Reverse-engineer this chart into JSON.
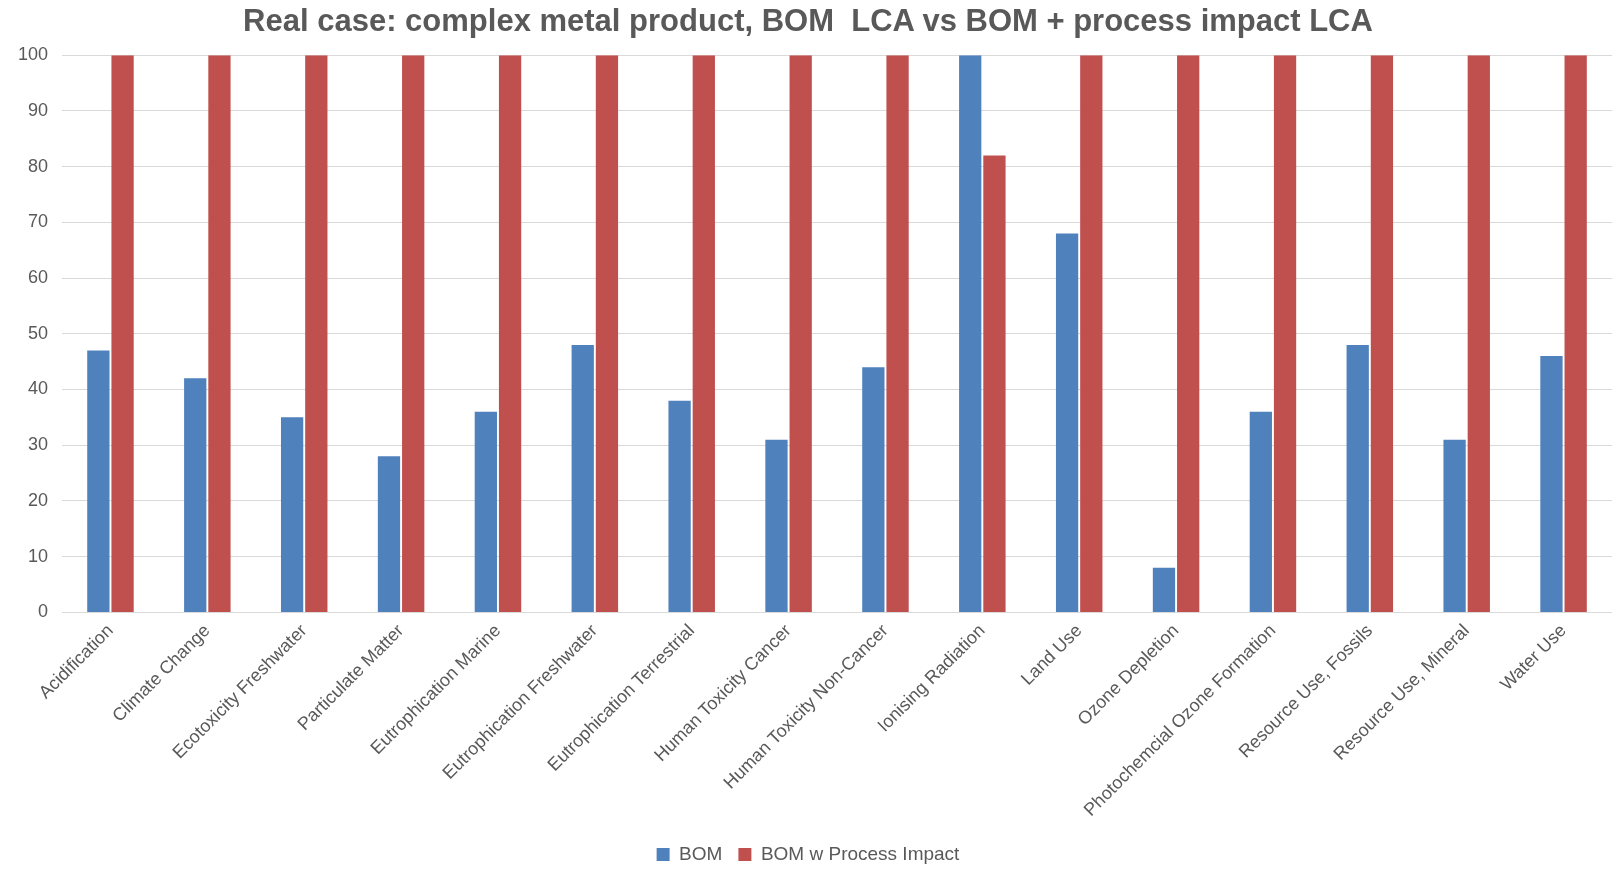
{
  "chart_data": {
    "type": "bar",
    "title": "Real case: complex metal product, BOM  LCA vs BOM + process impact LCA",
    "categories": [
      "Acidification",
      "Climate Change",
      "Ecotoxicity Freshwater",
      "Particulate Matter",
      "Eutrophication Marine",
      "Eutrophication Freshwater",
      "Eutrophication Terrestrial",
      "Human Toxicity Cancer",
      "Human Toxicity Non-Cancer",
      "Ionising Radiation",
      "Land Use",
      "Ozone Depletion",
      "Photochemcial Ozone Formation",
      "Resource Use, Fossils",
      "Resource Use, Mineral",
      "Water Use"
    ],
    "series": [
      {
        "name": "BOM",
        "color": "#4f81bd",
        "values": [
          47,
          42,
          35,
          28,
          36,
          48,
          38,
          31,
          44,
          100,
          68,
          8,
          36,
          48,
          31,
          46
        ]
      },
      {
        "name": "BOM w Process Impact",
        "color": "#c0504d",
        "values": [
          100,
          100,
          100,
          100,
          100,
          100,
          100,
          100,
          100,
          82,
          100,
          100,
          100,
          100,
          100,
          100
        ]
      }
    ],
    "ylim": [
      0,
      100
    ],
    "yticks": [
      0,
      10,
      20,
      30,
      40,
      50,
      60,
      70,
      80,
      90,
      100
    ],
    "grid": "y",
    "legend": "bottom"
  }
}
